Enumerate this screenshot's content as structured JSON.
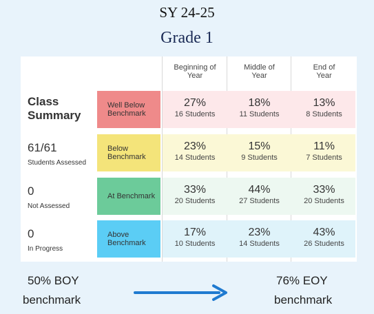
{
  "header": {
    "title": "SY 24-25",
    "subtitle": "Grade 1"
  },
  "table": {
    "columns": [
      "Beginning of Year",
      "Middle of Year",
      "End of Year"
    ],
    "summary": {
      "title": "Class Summary",
      "stats": [
        {
          "value": "61/61",
          "label": "Students Assessed"
        },
        {
          "value": "0",
          "label": "Not Assessed"
        },
        {
          "value": "0",
          "label": "In Progress"
        }
      ]
    },
    "rows": [
      {
        "level": "Well Below Benchmark",
        "cells": [
          {
            "percent": "27%",
            "students": "16 Students"
          },
          {
            "percent": "18%",
            "students": "11 Students"
          },
          {
            "percent": "13%",
            "students": "8 Students"
          }
        ]
      },
      {
        "level": "Below Benchmark",
        "cells": [
          {
            "percent": "23%",
            "students": "14 Students"
          },
          {
            "percent": "15%",
            "students": "9 Students"
          },
          {
            "percent": "11%",
            "students": "7 Students"
          }
        ]
      },
      {
        "level": "At Benchmark",
        "cells": [
          {
            "percent": "33%",
            "students": "20 Students"
          },
          {
            "percent": "44%",
            "students": "27 Students"
          },
          {
            "percent": "33%",
            "students": "20 Students"
          }
        ]
      },
      {
        "level": "Above Benchmark",
        "cells": [
          {
            "percent": "17%",
            "students": "10 Students"
          },
          {
            "percent": "23%",
            "students": "14 Students"
          },
          {
            "percent": "43%",
            "students": "26 Students"
          }
        ]
      }
    ]
  },
  "footer": {
    "left": "50%  BOY",
    "left_sub": "benchmark",
    "right": "76% EOY",
    "right_sub": "benchmark"
  }
}
